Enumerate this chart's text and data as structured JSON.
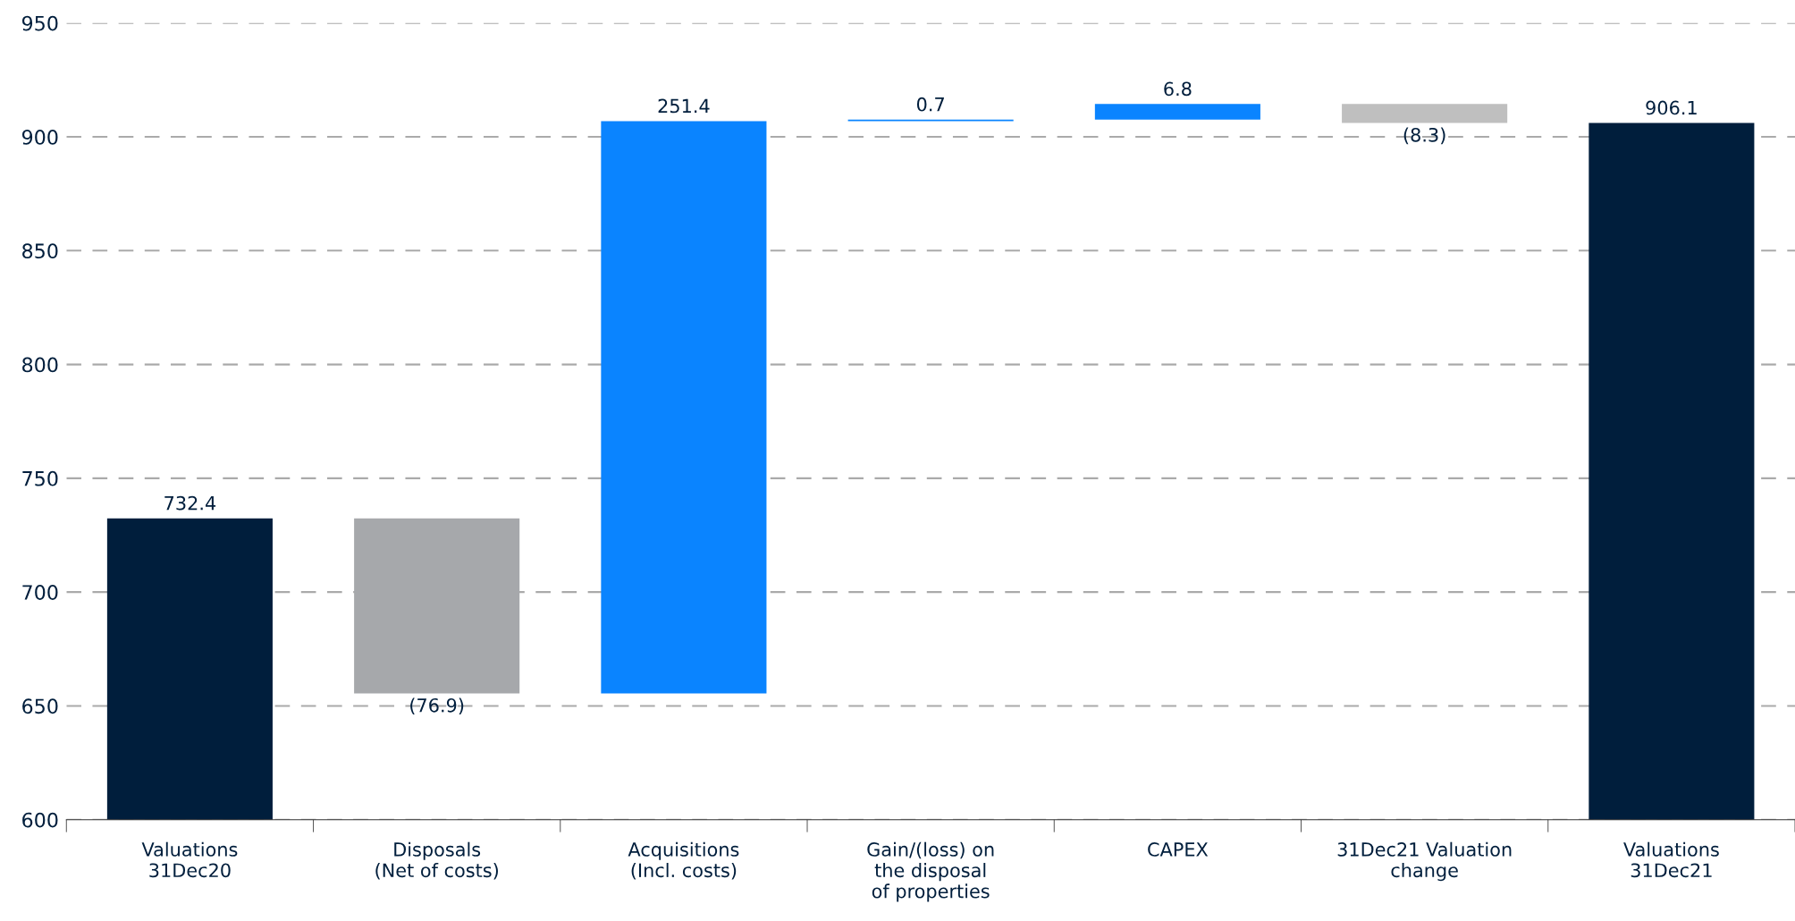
{
  "chart_data": {
    "type": "bar",
    "categories": [
      "Valuations\n31Dec20",
      "Disposals\n(Net of costs)",
      "Acquisitions\n(Incl. costs)",
      "Gain/(loss) on\nthe disposal\nof properties",
      "CAPEX",
      "31Dec21 Valuation\nchange",
      "Valuations\n31Dec21"
    ],
    "values": [
      732.4,
      -76.9,
      251.4,
      0.7,
      6.8,
      -8.3,
      906.1
    ],
    "base": [
      0,
      732.4,
      655.5,
      906.9,
      907.6,
      914.4,
      0
    ],
    "colors": [
      "#001e3c",
      "#a6a8ab",
      "#0a84ff",
      "#0a84ff",
      "#0a84ff",
      "#bfbfbf",
      "#001e3c"
    ],
    "value_labels": [
      "732.4",
      "(76.9)",
      "251.4",
      "0.7",
      "6.8",
      "(8.3)",
      "906.1"
    ],
    "ylim": [
      600,
      950
    ],
    "yticks": [
      600,
      650,
      700,
      750,
      800,
      850,
      900,
      950
    ],
    "grid": "y"
  }
}
